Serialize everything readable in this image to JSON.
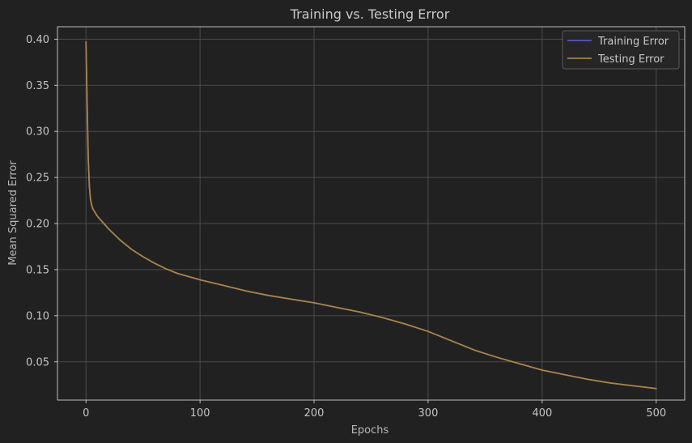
{
  "chart_data": {
    "type": "line",
    "title": "Training vs. Testing Error",
    "xlabel": "Epochs",
    "ylabel": "Mean Squared Error",
    "xlim": [
      -25,
      525
    ],
    "ylim": [
      0.0085,
      0.4135
    ],
    "xticks": [
      0,
      100,
      200,
      300,
      400,
      500
    ],
    "yticks": [
      0.05,
      0.1,
      0.15,
      0.2,
      0.25,
      0.3,
      0.35,
      0.4
    ],
    "grid": true,
    "legend_position": "top-right",
    "background": "#212121",
    "series": [
      {
        "name": "Training Error",
        "color": "#5a5fe0",
        "x": [
          0,
          1,
          2,
          3,
          4,
          5,
          6,
          8,
          10,
          15,
          20,
          30,
          40,
          50,
          60,
          70,
          80,
          100,
          120,
          140,
          160,
          180,
          200,
          220,
          240,
          260,
          280,
          300,
          320,
          340,
          360,
          380,
          400,
          420,
          440,
          460,
          480,
          500
        ],
        "y": [
          0.397,
          0.33,
          0.27,
          0.24,
          0.226,
          0.22,
          0.216,
          0.212,
          0.208,
          0.201,
          0.194,
          0.182,
          0.172,
          0.164,
          0.157,
          0.151,
          0.146,
          0.139,
          0.133,
          0.127,
          0.122,
          0.118,
          0.114,
          0.109,
          0.104,
          0.098,
          0.091,
          0.083,
          0.073,
          0.063,
          0.055,
          0.048,
          0.041,
          0.036,
          0.031,
          0.027,
          0.024,
          0.021
        ]
      },
      {
        "name": "Testing Error",
        "color": "#a9834a",
        "x": [
          0,
          1,
          2,
          3,
          4,
          5,
          6,
          8,
          10,
          15,
          20,
          30,
          40,
          50,
          60,
          70,
          80,
          100,
          120,
          140,
          160,
          180,
          200,
          220,
          240,
          260,
          280,
          300,
          320,
          340,
          360,
          380,
          400,
          420,
          440,
          460,
          480,
          500
        ],
        "y": [
          0.397,
          0.33,
          0.27,
          0.24,
          0.226,
          0.22,
          0.216,
          0.212,
          0.208,
          0.201,
          0.194,
          0.182,
          0.172,
          0.164,
          0.157,
          0.151,
          0.146,
          0.139,
          0.133,
          0.127,
          0.122,
          0.118,
          0.114,
          0.109,
          0.104,
          0.098,
          0.091,
          0.083,
          0.073,
          0.063,
          0.055,
          0.048,
          0.041,
          0.036,
          0.031,
          0.027,
          0.024,
          0.021
        ]
      }
    ]
  }
}
